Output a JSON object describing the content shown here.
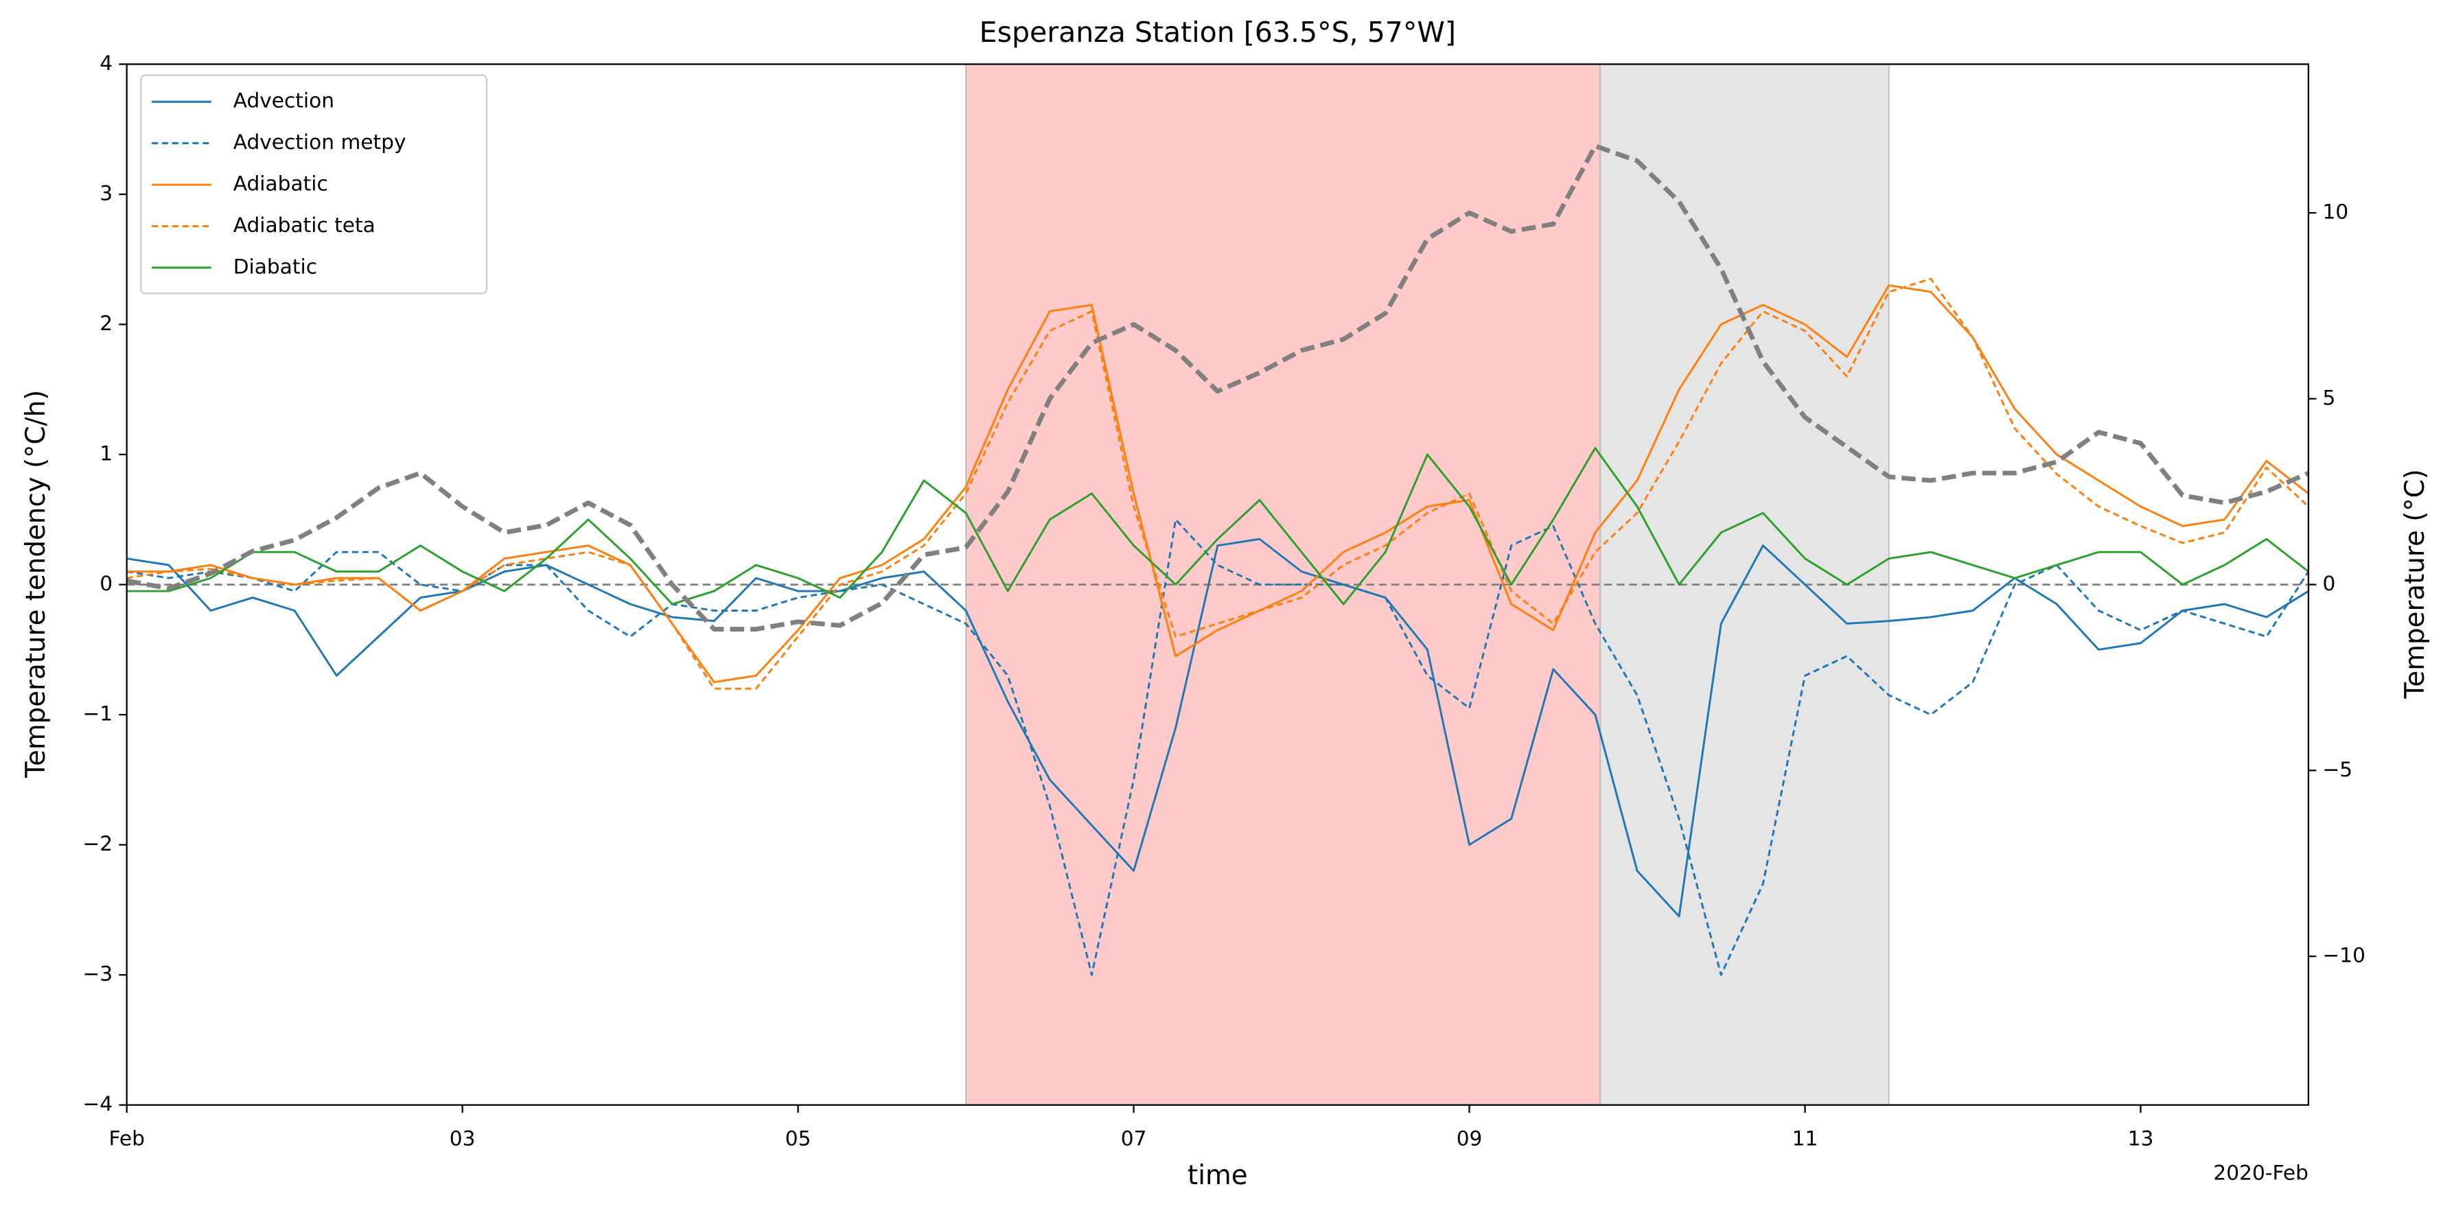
{
  "chart_data": {
    "type": "line",
    "title": "Esperanza Station [63.5°S, 57°W]",
    "xlabel": "time",
    "x_offset_label": "2020-Feb",
    "ylabel": "Temperature tendency (°C/h)",
    "y2label": "Temperature (°C)",
    "x": [
      1,
      1.25,
      1.5,
      1.75,
      2,
      2.25,
      2.5,
      2.75,
      3,
      3.25,
      3.5,
      3.75,
      4,
      4.25,
      4.5,
      4.75,
      5,
      5.25,
      5.5,
      5.75,
      6,
      6.25,
      6.5,
      6.75,
      7,
      7.25,
      7.5,
      7.75,
      8,
      8.25,
      8.5,
      8.75,
      9,
      9.25,
      9.5,
      9.75,
      10,
      10.25,
      10.5,
      10.75,
      11,
      11.25,
      11.5,
      11.75,
      12,
      12.25,
      12.5,
      12.75,
      13,
      13.25,
      13.5,
      13.75,
      14
    ],
    "xlim": [
      1,
      14
    ],
    "xticks": [
      {
        "value": 1,
        "label": "Feb"
      },
      {
        "value": 3,
        "label": "03"
      },
      {
        "value": 5,
        "label": "05"
      },
      {
        "value": 7,
        "label": "07"
      },
      {
        "value": 9,
        "label": "09"
      },
      {
        "value": 11,
        "label": "11"
      },
      {
        "value": 13,
        "label": "13"
      }
    ],
    "ylim": [
      -4,
      4
    ],
    "yticks": [
      {
        "value": -4,
        "label": "−4"
      },
      {
        "value": -3,
        "label": "−3"
      },
      {
        "value": -2,
        "label": "−2"
      },
      {
        "value": -1,
        "label": "−1"
      },
      0,
      1,
      2,
      3,
      4
    ],
    "y2lim": [
      -14,
      14
    ],
    "y2ticks": [
      {
        "value": -10,
        "label": "−10"
      },
      {
        "value": -5,
        "label": "−5"
      },
      0,
      5,
      10
    ],
    "hline": 0,
    "spans": [
      {
        "start": 6,
        "end": 9.78,
        "color": "#ffcaca"
      },
      {
        "start": 9.78,
        "end": 11.5,
        "color": "#e5e5e5"
      }
    ],
    "legend": "upper left",
    "series": [
      {
        "name": "Advection",
        "color": "#1f77b4",
        "dashed": false,
        "values": [
          0.2,
          0.15,
          -0.2,
          -0.1,
          -0.2,
          -0.7,
          -0.4,
          -0.1,
          -0.05,
          0.1,
          0.15,
          0,
          -0.15,
          -0.25,
          -0.28,
          0.05,
          -0.05,
          -0.05,
          0.05,
          0.1,
          -0.2,
          -0.9,
          -1.5,
          -1.85,
          -2.2,
          -1.1,
          0.3,
          0.35,
          0.1,
          0,
          -0.1,
          -0.5,
          -2,
          -1.8,
          -0.65,
          -1,
          -2.2,
          -2.55,
          -0.3,
          0.3,
          0,
          -0.3,
          -0.28,
          -0.25,
          -0.2,
          0.05,
          -0.15,
          -0.5,
          -0.45,
          -0.2,
          -0.15,
          -0.25,
          -0.05
        ]
      },
      {
        "name": "Advection metpy",
        "color": "#1f77b4",
        "dashed": true,
        "values": [
          0.1,
          0.05,
          0.1,
          0.05,
          -0.05,
          0.25,
          0.25,
          0,
          -0.05,
          0.15,
          0.15,
          -0.2,
          -0.4,
          -0.15,
          -0.2,
          -0.2,
          -0.1,
          -0.05,
          0,
          -0.15,
          -0.3,
          -0.7,
          -1.7,
          -3,
          -1.5,
          0.5,
          0.15,
          0,
          0,
          0,
          -0.1,
          -0.7,
          -0.95,
          0.3,
          0.45,
          -0.3,
          -0.85,
          -1.8,
          -3,
          -2.3,
          -0.7,
          -0.55,
          -0.85,
          -1,
          -0.75,
          0,
          0.15,
          -0.2,
          -0.35,
          -0.2,
          -0.3,
          -0.4,
          0.1
        ]
      },
      {
        "name": "Adiabatic",
        "color": "#ff7f0e",
        "dashed": false,
        "values": [
          0.1,
          0.1,
          0.15,
          0.05,
          0,
          0.05,
          0.05,
          -0.2,
          -0.05,
          0.2,
          0.25,
          0.3,
          0.15,
          -0.3,
          -0.75,
          -0.7,
          -0.35,
          0.05,
          0.15,
          0.35,
          0.75,
          1.5,
          2.1,
          2.15,
          0.7,
          -0.55,
          -0.35,
          -0.2,
          -0.05,
          0.25,
          0.4,
          0.6,
          0.65,
          -0.15,
          -0.35,
          0.4,
          0.8,
          1.5,
          2,
          2.15,
          2,
          1.75,
          2.3,
          2.25,
          1.9,
          1.35,
          1,
          0.8,
          0.6,
          0.45,
          0.5,
          0.95,
          0.7
        ]
      },
      {
        "name": "Adiabatic teta",
        "color": "#ff7f0e",
        "dashed": true,
        "values": [
          0.05,
          0.1,
          0.12,
          0.05,
          0,
          0.03,
          0.05,
          -0.2,
          -0.05,
          0.15,
          0.2,
          0.25,
          0.15,
          -0.3,
          -0.8,
          -0.8,
          -0.4,
          0,
          0.1,
          0.3,
          0.7,
          1.4,
          1.95,
          2.1,
          0.6,
          -0.4,
          -0.3,
          -0.2,
          -0.1,
          0.15,
          0.3,
          0.55,
          0.7,
          -0.05,
          -0.3,
          0.25,
          0.55,
          1.1,
          1.7,
          2.1,
          1.95,
          1.6,
          2.25,
          2.35,
          1.9,
          1.2,
          0.85,
          0.6,
          0.45,
          0.32,
          0.4,
          0.9,
          0.6
        ]
      },
      {
        "name": "Diabatic",
        "color": "#2ca02c",
        "dashed": false,
        "values": [
          -0.05,
          -0.05,
          0.05,
          0.25,
          0.25,
          0.1,
          0.1,
          0.3,
          0.1,
          -0.05,
          0.2,
          0.5,
          0.2,
          -0.15,
          -0.05,
          0.15,
          0.05,
          -0.1,
          0.25,
          0.8,
          0.55,
          -0.05,
          0.5,
          0.7,
          0.3,
          0,
          0.35,
          0.65,
          0.25,
          -0.15,
          0.25,
          1,
          0.6,
          0,
          0.5,
          1.05,
          0.6,
          0,
          0.4,
          0.55,
          0.2,
          0,
          0.2,
          0.25,
          0.15,
          0.05,
          0.15,
          0.25,
          0.25,
          0,
          0.15,
          0.35,
          0.1
        ]
      },
      {
        "color": "#808080",
        "dashed": true,
        "axis": "y2",
        "thick": true,
        "values": [
          0.1,
          -0.1,
          0.3,
          0.9,
          1.2,
          1.8,
          2.6,
          3,
          2.1,
          1.4,
          1.6,
          2.2,
          1.6,
          0,
          -1.2,
          -1.2,
          -1,
          -1.1,
          -0.5,
          0.8,
          1,
          2.5,
          5,
          6.5,
          7,
          6.3,
          5.2,
          5.7,
          6.3,
          6.6,
          7.3,
          9.3,
          10,
          9.5,
          9.7,
          11.8,
          11.4,
          10.3,
          8.5,
          6,
          4.5,
          3.7,
          2.9,
          2.8,
          3,
          3,
          3.3,
          4.1,
          3.8,
          2.4,
          2.2,
          2.5,
          3
        ]
      }
    ]
  }
}
